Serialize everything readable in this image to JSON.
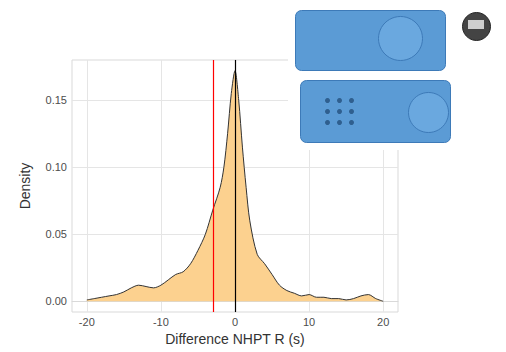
{
  "chart_data": {
    "type": "density",
    "x_label": "Difference NHPT R (s)",
    "y_label": "Density",
    "x": [
      -20,
      -19,
      -18,
      -17,
      -16,
      -15,
      -14,
      -13,
      -12,
      -11,
      -10,
      -9,
      -8,
      -7,
      -6,
      -5,
      -4,
      -3,
      -2,
      -1.5,
      -1,
      -0.5,
      0,
      0.5,
      1,
      1.5,
      2,
      3,
      4,
      5,
      6,
      7,
      8,
      9,
      10,
      11,
      12,
      13,
      14,
      15,
      16,
      17,
      18,
      19,
      20
    ],
    "values": [
      0.001,
      0.002,
      0.003,
      0.004,
      0.005,
      0.007,
      0.01,
      0.012,
      0.011,
      0.01,
      0.012,
      0.016,
      0.02,
      0.022,
      0.028,
      0.038,
      0.05,
      0.068,
      0.085,
      0.1,
      0.125,
      0.155,
      0.172,
      0.15,
      0.115,
      0.085,
      0.06,
      0.035,
      0.028,
      0.02,
      0.012,
      0.008,
      0.006,
      0.004,
      0.005,
      0.003,
      0.003,
      0.002,
      0.002,
      0.001,
      0.002,
      0.004,
      0.005,
      0.002,
      0.0
    ],
    "color": "#fcd18f",
    "reference_lines": [
      {
        "x": -3,
        "color": "#ff0000"
      },
      {
        "x": 0,
        "color": "#000000"
      }
    ],
    "xlim": [
      -22,
      22
    ],
    "xticks": [
      -20,
      -10,
      0,
      10,
      20
    ],
    "ylim": [
      -0.008,
      0.18
    ],
    "yticks": [
      {
        "value": 0,
        "label": "0.00"
      },
      {
        "value": 0.05,
        "label": "0.05"
      },
      {
        "value": 0.1,
        "label": "0.10"
      },
      {
        "value": 0.15,
        "label": "0.15"
      }
    ],
    "grid": true
  }
}
